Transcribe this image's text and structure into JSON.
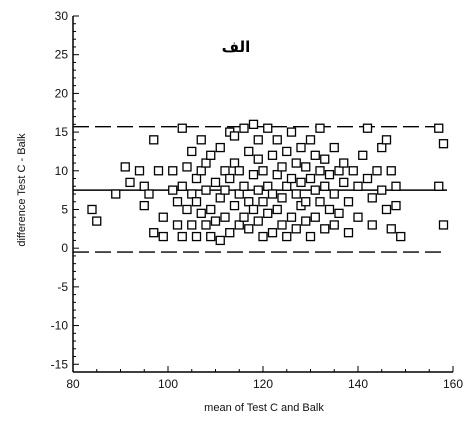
{
  "chart_data": {
    "type": "scatter",
    "title": "",
    "panel_label": "الف",
    "xlabel": "mean of Test C and Balk",
    "ylabel": "difference Test C - Balk",
    "xlim": [
      80,
      160
    ],
    "ylim": [
      -16,
      30
    ],
    "x_ticks": [
      80,
      100,
      120,
      140,
      160
    ],
    "x_tick_labels": [
      "80",
      "100",
      "120",
      "140",
      "160"
    ],
    "y_ticks": [
      -15,
      -10,
      -5,
      0,
      5,
      10,
      15,
      20,
      25,
      30
    ],
    "y_tick_labels": [
      "-15",
      "-10",
      "-5",
      "0",
      "5",
      "10",
      "15",
      "20",
      "25",
      "30"
    ],
    "grid": false,
    "legend": "none",
    "reference_lines": [
      {
        "kind": "mean",
        "y": 7.5,
        "style": "solid"
      },
      {
        "kind": "upper-limit",
        "y": 15.7,
        "style": "dashed"
      },
      {
        "kind": "lower-limit",
        "y": -0.5,
        "style": "dashed"
      }
    ],
    "marker": "open-square",
    "points": [
      [
        84,
        5
      ],
      [
        85,
        3.5
      ],
      [
        89,
        7
      ],
      [
        91,
        10.5
      ],
      [
        92,
        8.5
      ],
      [
        94,
        10
      ],
      [
        95,
        8
      ],
      [
        95,
        5.5
      ],
      [
        96,
        7
      ],
      [
        97,
        14
      ],
      [
        98,
        10
      ],
      [
        97,
        2
      ],
      [
        99,
        4
      ],
      [
        99,
        1.5
      ],
      [
        101,
        10
      ],
      [
        101,
        7.5
      ],
      [
        102,
        3
      ],
      [
        102,
        6
      ],
      [
        103,
        1.5
      ],
      [
        103,
        15.5
      ],
      [
        103,
        8
      ],
      [
        104,
        5
      ],
      [
        104,
        10.5
      ],
      [
        105,
        7
      ],
      [
        105,
        3
      ],
      [
        105,
        12.5
      ],
      [
        106,
        9
      ],
      [
        106,
        6
      ],
      [
        106,
        1.5
      ],
      [
        107,
        14
      ],
      [
        107,
        10
      ],
      [
        107,
        4.5
      ],
      [
        108,
        11
      ],
      [
        108,
        7.5
      ],
      [
        108,
        3
      ],
      [
        109,
        5
      ],
      [
        109,
        12
      ],
      [
        109,
        1.5
      ],
      [
        110,
        8.5
      ],
      [
        110,
        3.5
      ],
      [
        111,
        13
      ],
      [
        111,
        6.5
      ],
      [
        111,
        1
      ],
      [
        112,
        10
      ],
      [
        112,
        4
      ],
      [
        112,
        7.5
      ],
      [
        113,
        15
      ],
      [
        113,
        9
      ],
      [
        113,
        2
      ],
      [
        114,
        14.5
      ],
      [
        114,
        5.5
      ],
      [
        114,
        11
      ],
      [
        115,
        7
      ],
      [
        115,
        3
      ],
      [
        115,
        10
      ],
      [
        116,
        8
      ],
      [
        116,
        4
      ],
      [
        116,
        15.5
      ],
      [
        117,
        6
      ],
      [
        117,
        12.5
      ],
      [
        117,
        2.5
      ],
      [
        118,
        9.5
      ],
      [
        118,
        16
      ],
      [
        118,
        5
      ],
      [
        119,
        7.5
      ],
      [
        119,
        3.5
      ],
      [
        119,
        11.5
      ],
      [
        119,
        14
      ],
      [
        120,
        6
      ],
      [
        120,
        1.5
      ],
      [
        120,
        10
      ],
      [
        121,
        8
      ],
      [
        121,
        4.5
      ],
      [
        121,
        15.5
      ],
      [
        122,
        12
      ],
      [
        122,
        7
      ],
      [
        122,
        2
      ],
      [
        123,
        9.5
      ],
      [
        123,
        5
      ],
      [
        123,
        14
      ],
      [
        124,
        10.5
      ],
      [
        124,
        6.5
      ],
      [
        124,
        3
      ],
      [
        125,
        8
      ],
      [
        125,
        12.5
      ],
      [
        125,
        1.5
      ],
      [
        126,
        4
      ],
      [
        126,
        9
      ],
      [
        126,
        15
      ],
      [
        127,
        7
      ],
      [
        127,
        11
      ],
      [
        127,
        2.5
      ],
      [
        128,
        13
      ],
      [
        128,
        5.5
      ],
      [
        128,
        8.5
      ],
      [
        129,
        10.5
      ],
      [
        129,
        3.5
      ],
      [
        129,
        6
      ],
      [
        130,
        14
      ],
      [
        130,
        9
      ],
      [
        130,
        1.5
      ],
      [
        131,
        7.5
      ],
      [
        131,
        12
      ],
      [
        131,
        4
      ],
      [
        132,
        10
      ],
      [
        132,
        6
      ],
      [
        132,
        15.5
      ],
      [
        133,
        8
      ],
      [
        133,
        2.5
      ],
      [
        133,
        11.5
      ],
      [
        134,
        5
      ],
      [
        134,
        9.5
      ],
      [
        135,
        7
      ],
      [
        135,
        13
      ],
      [
        135,
        3
      ],
      [
        136,
        10
      ],
      [
        136,
        4.5
      ],
      [
        137,
        8.5
      ],
      [
        137,
        11
      ],
      [
        138,
        6
      ],
      [
        138,
        2
      ],
      [
        139,
        10
      ],
      [
        140,
        8
      ],
      [
        140,
        4
      ],
      [
        141,
        12
      ],
      [
        142,
        9
      ],
      [
        142,
        15.5
      ],
      [
        143,
        6.5
      ],
      [
        143,
        3
      ],
      [
        144,
        10
      ],
      [
        145,
        7.5
      ],
      [
        145,
        13
      ],
      [
        146,
        14
      ],
      [
        146,
        5
      ],
      [
        147,
        10
      ],
      [
        147,
        2.5
      ],
      [
        148,
        8
      ],
      [
        148,
        5.5
      ],
      [
        149,
        1.5
      ],
      [
        157,
        15.5
      ],
      [
        157,
        8
      ],
      [
        158,
        3
      ],
      [
        158,
        13.5
      ]
    ]
  }
}
